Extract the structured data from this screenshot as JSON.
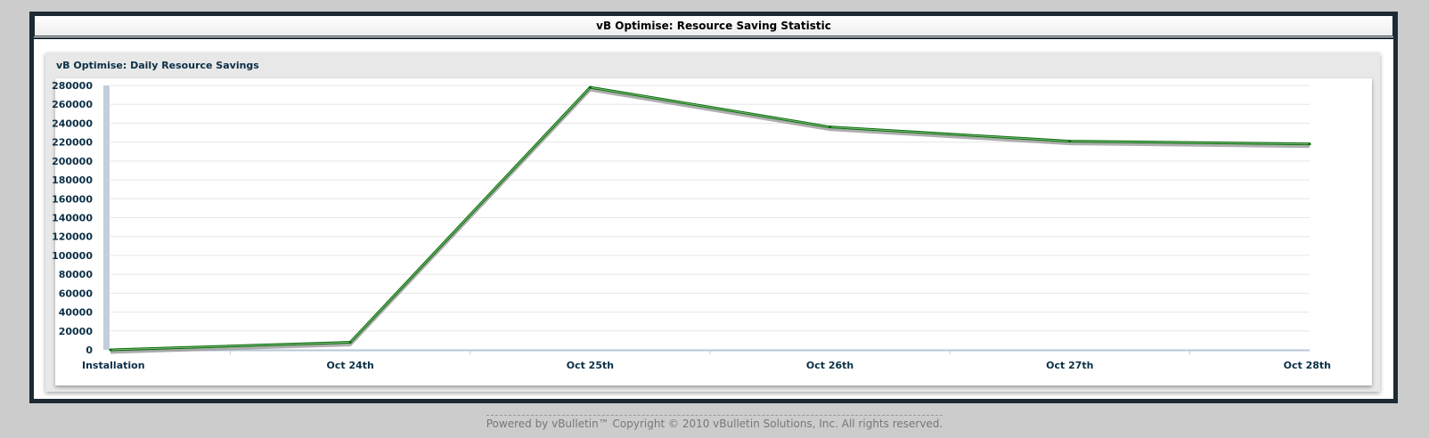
{
  "page": {
    "window_title": "vB Optimise: Resource Saving Statistic",
    "footer": "Powered by vBulletin™ Copyright © 2010 vBulletin Solutions, Inc. All rights reserved."
  },
  "chart_data": {
    "type": "line",
    "title": "vB Optimise: Daily Resource Savings",
    "xlabel": "",
    "ylabel": "",
    "categories": [
      "Installation",
      "Oct 24th",
      "Oct 25th",
      "Oct 26th",
      "Oct 27th",
      "Oct 28th"
    ],
    "series": [
      {
        "values": [
          0,
          8000,
          278000,
          236000,
          221000,
          218000
        ]
      }
    ],
    "ylim": [
      0,
      280000
    ],
    "yticks": [
      "0",
      "20000",
      "40000",
      "60000",
      "80000",
      "100000",
      "120000",
      "140000",
      "160000",
      "180000",
      "200000",
      "220000",
      "240000",
      "260000",
      "280000"
    ],
    "grid": true,
    "line_color": "#0a6b0a"
  }
}
